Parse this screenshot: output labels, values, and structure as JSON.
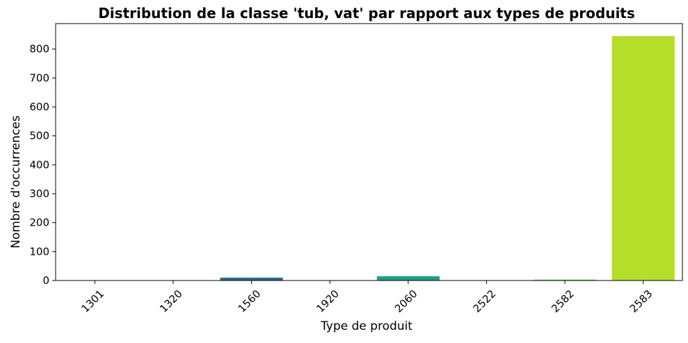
{
  "chart_data": {
    "type": "bar",
    "title": "Distribution de la classe 'tub, vat' par rapport aux types de produits",
    "xlabel": "Type de produit",
    "ylabel": "Nombre d'occurrences",
    "categories": [
      "1301",
      "1320",
      "1560",
      "1920",
      "2060",
      "2522",
      "2582",
      "2583"
    ],
    "values": [
      1,
      1,
      10,
      1,
      15,
      1,
      3,
      845
    ],
    "colors": [
      "#46085c",
      "#433e85",
      "#31688e",
      "#25848e",
      "#1f9e89",
      "#35b779",
      "#6ece58",
      "#b5de2b"
    ],
    "ylim": [
      0,
      888
    ],
    "yticks": [
      0,
      100,
      200,
      300,
      400,
      500,
      600,
      700,
      800
    ],
    "grid": false,
    "legend": "none"
  }
}
